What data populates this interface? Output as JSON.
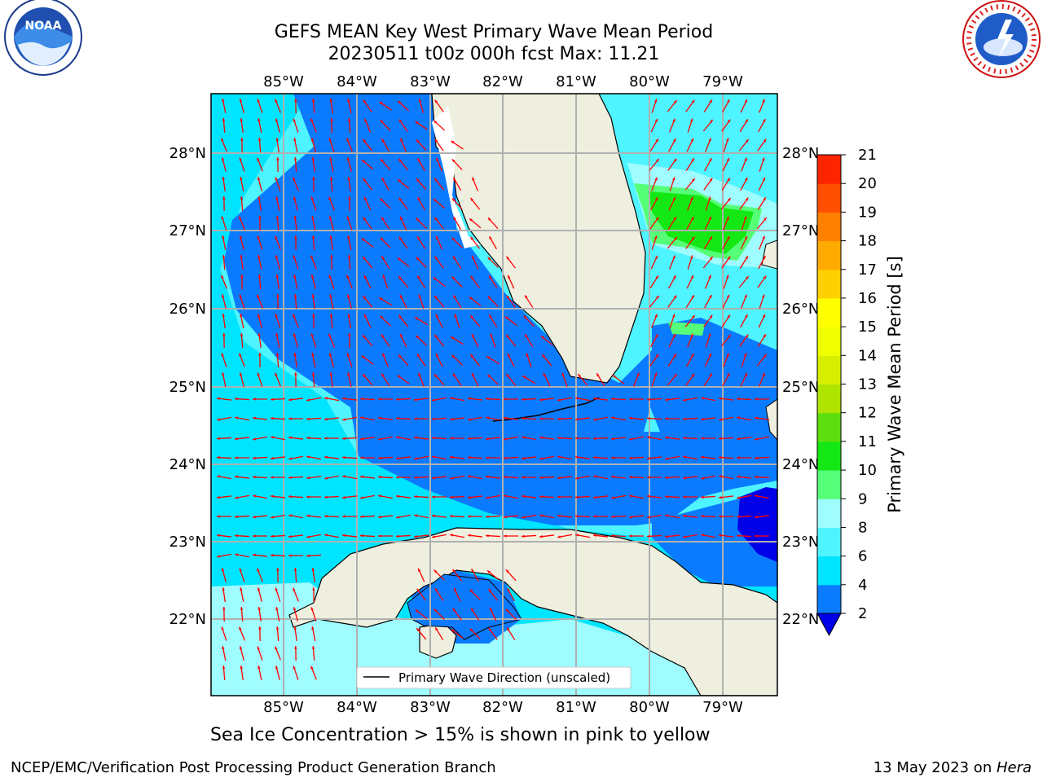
{
  "header": {
    "title_line1": "GEFS MEAN Key West Primary Wave Mean Period",
    "title_line2": "20230511 t00z 000h fcst   Max: 11.21"
  },
  "logos": {
    "left": {
      "text": "NOAA",
      "icon": "noaa-logo-icon",
      "ring_text": "NATIONAL OCEANIC AND ATMOSPHERIC ADMINISTRATION · U.S. DEPARTMENT OF COMMERCE"
    },
    "right": {
      "icon": "nws-logo-icon",
      "ring_text": "NATIONAL WEATHER SERVICE"
    }
  },
  "map": {
    "lon_labels": [
      "85°W",
      "84°W",
      "83°W",
      "82°W",
      "81°W",
      "80°W",
      "79°W"
    ],
    "lat_labels": [
      "28°N",
      "27°N",
      "26°N",
      "25°N",
      "24°N",
      "23°N",
      "22°N"
    ],
    "legend_label": "Primary Wave Direction (unscaled)"
  },
  "colorbar": {
    "label": "Primary Wave Mean Period [s]",
    "ticks": [
      "2",
      "4",
      "6",
      "8",
      "9",
      "10",
      "11",
      "12",
      "13",
      "14",
      "15",
      "16",
      "17",
      "18",
      "19",
      "20",
      "21"
    ],
    "colors": [
      "#0a7bff",
      "#00e5ff",
      "#4ef4ff",
      "#9ffcff",
      "#55ff77",
      "#14e814",
      "#5ede0e",
      "#aee400",
      "#d8ee00",
      "#f0ff00",
      "#ffff00",
      "#ffd000",
      "#ffaa00",
      "#ff8000",
      "#ff4e00",
      "#ff2400"
    ]
  },
  "bottom_note": "Sea Ice Concentration > 15% is shown in pink to yellow",
  "footer": {
    "left": "NCEP/EMC/Verification Post Processing Product Generation Branch",
    "right_prefix": "13 May 2023 on ",
    "right_host": "Hera"
  }
}
